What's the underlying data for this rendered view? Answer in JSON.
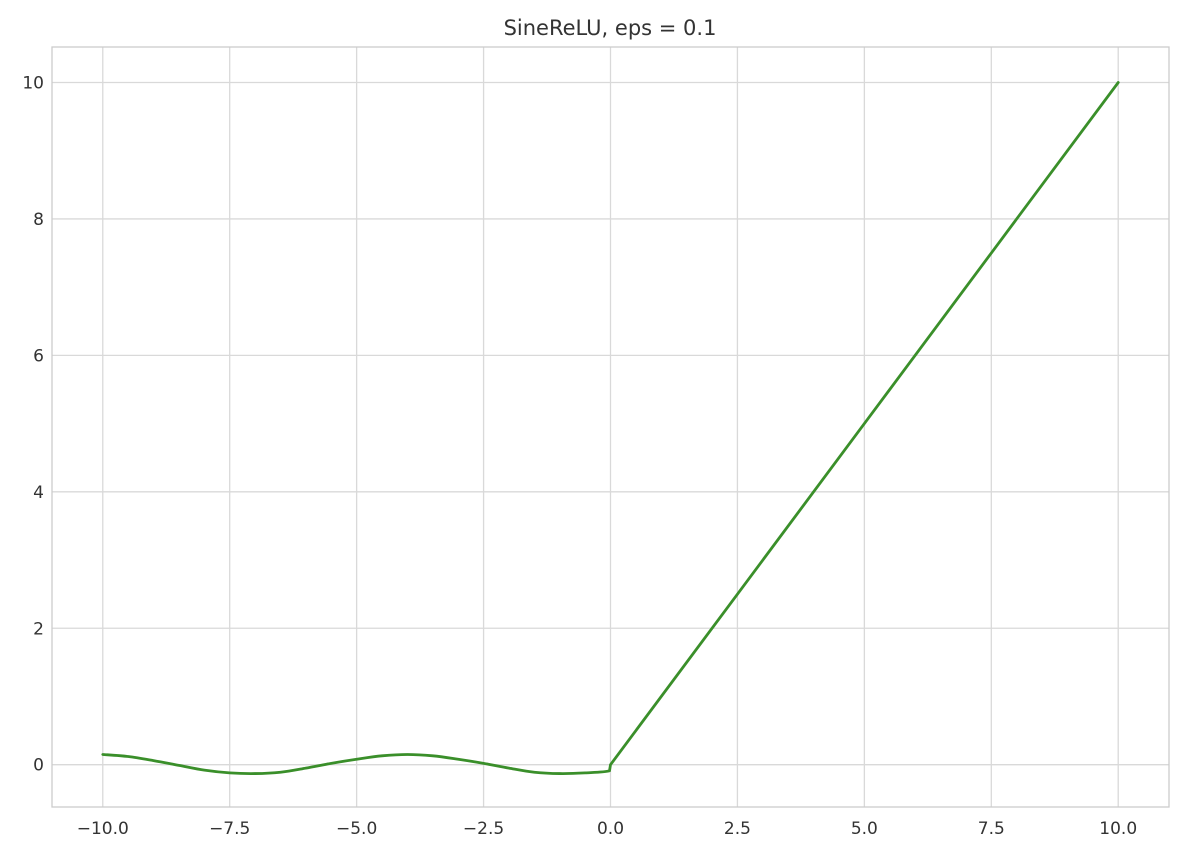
{
  "chart_data": {
    "type": "line",
    "title": "SineReLU, eps = 0.1",
    "xlabel": "",
    "ylabel": "",
    "xlim": [
      -11.0,
      11.0
    ],
    "ylim": [
      -0.62,
      10.52
    ],
    "xticks": [
      -10.0,
      -7.5,
      -5.0,
      -2.5,
      0.0,
      2.5,
      5.0,
      7.5,
      10.0
    ],
    "xtick_labels": [
      "−10.0",
      "−7.5",
      "−5.0",
      "−2.5",
      "0.0",
      "2.5",
      "5.0",
      "7.5",
      "10.0"
    ],
    "yticks": [
      0,
      2,
      4,
      6,
      8,
      10
    ],
    "ytick_labels": [
      "0",
      "2",
      "4",
      "6",
      "8",
      "10"
    ],
    "grid": true,
    "series": [
      {
        "color": "#3a8f2a",
        "x": [
          -10.0,
          -9.5,
          -9.0,
          -8.5,
          -8.0,
          -7.5,
          -7.0,
          -6.5,
          -6.0,
          -5.5,
          -5.0,
          -4.5,
          -4.0,
          -3.5,
          -3.0,
          -2.5,
          -2.0,
          -1.5,
          -1.0,
          -0.5,
          -0.02,
          0.0,
          2.5,
          5.0,
          7.5,
          10.0
        ],
        "y": [
          0.15,
          0.12,
          0.06,
          -0.01,
          -0.08,
          -0.12,
          -0.13,
          -0.11,
          -0.05,
          0.02,
          0.08,
          0.13,
          0.15,
          0.13,
          0.08,
          0.02,
          -0.05,
          -0.11,
          -0.13,
          -0.12,
          -0.09,
          0.0,
          2.5,
          5.0,
          7.5,
          10.0
        ]
      }
    ]
  }
}
